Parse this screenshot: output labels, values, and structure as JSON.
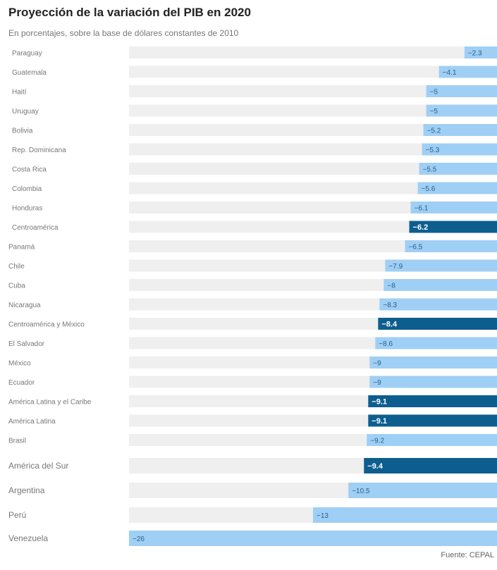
{
  "header": {
    "title": "Proyección de la variación del PIB en 2020",
    "subtitle": "En porcentajes, sobre la base de dólares constantes de 2010"
  },
  "footer": {
    "source": "Fuente: CEPAL"
  },
  "colors": {
    "track": "#efefef",
    "bar_country": "#9fcff5",
    "bar_region": "#0d5e8f",
    "label_on_light": "#2b5d86",
    "label_on_dark": "#ffffff",
    "category_text": "#777777"
  },
  "chart_data": {
    "type": "bar",
    "orientation": "horizontal",
    "title": "Proyección de la variación del PIB en 2020",
    "subtitle": "En porcentajes, sobre la base de dólares constantes de 2010",
    "xlim": [
      -26,
      0
    ],
    "grid": false,
    "categories": [
      "Paraguay",
      "Guatemala",
      "Haití",
      "Uruguay",
      "Bolivia",
      "Rep. Dominicana",
      "Costa Rica",
      "Colombia",
      "Honduras",
      "Centroamérica",
      "Panamá",
      "Chile",
      "Cuba",
      "Nicaragua",
      "Centroamérica y México",
      "El Salvador",
      "México",
      "Ecuador",
      "América Latina y el Caribe",
      "América Latina",
      "Brasil",
      "América del Sur",
      "Argentina",
      "Perú",
      "Venezuela"
    ],
    "values": [
      -2.3,
      -4.1,
      -5,
      -5,
      -5.2,
      -5.3,
      -5.5,
      -5.6,
      -6.1,
      -6.2,
      -6.5,
      -7.9,
      -8,
      -8.3,
      -8.4,
      -8.6,
      -9,
      -9,
      -9.1,
      -9.1,
      -9.2,
      -9.4,
      -10.5,
      -13,
      -26
    ],
    "value_labels": [
      "−2.3",
      "−4.1",
      "−5",
      "−5",
      "−5.2",
      "−5.3",
      "−5.5",
      "−5.6",
      "−6.1",
      "−6.2",
      "−6.5",
      "−7.9",
      "−8",
      "−8.3",
      "−8.4",
      "−8.6",
      "−9",
      "−9",
      "−9.1",
      "−9.1",
      "−9.2",
      "−9.4",
      "−10.5",
      "−13",
      "−26"
    ],
    "highlighted": [
      "Centroamérica",
      "Centroamérica y México",
      "América Latina y el Caribe",
      "América Latina",
      "América del Sur"
    ],
    "source": "Fuente: CEPAL"
  }
}
